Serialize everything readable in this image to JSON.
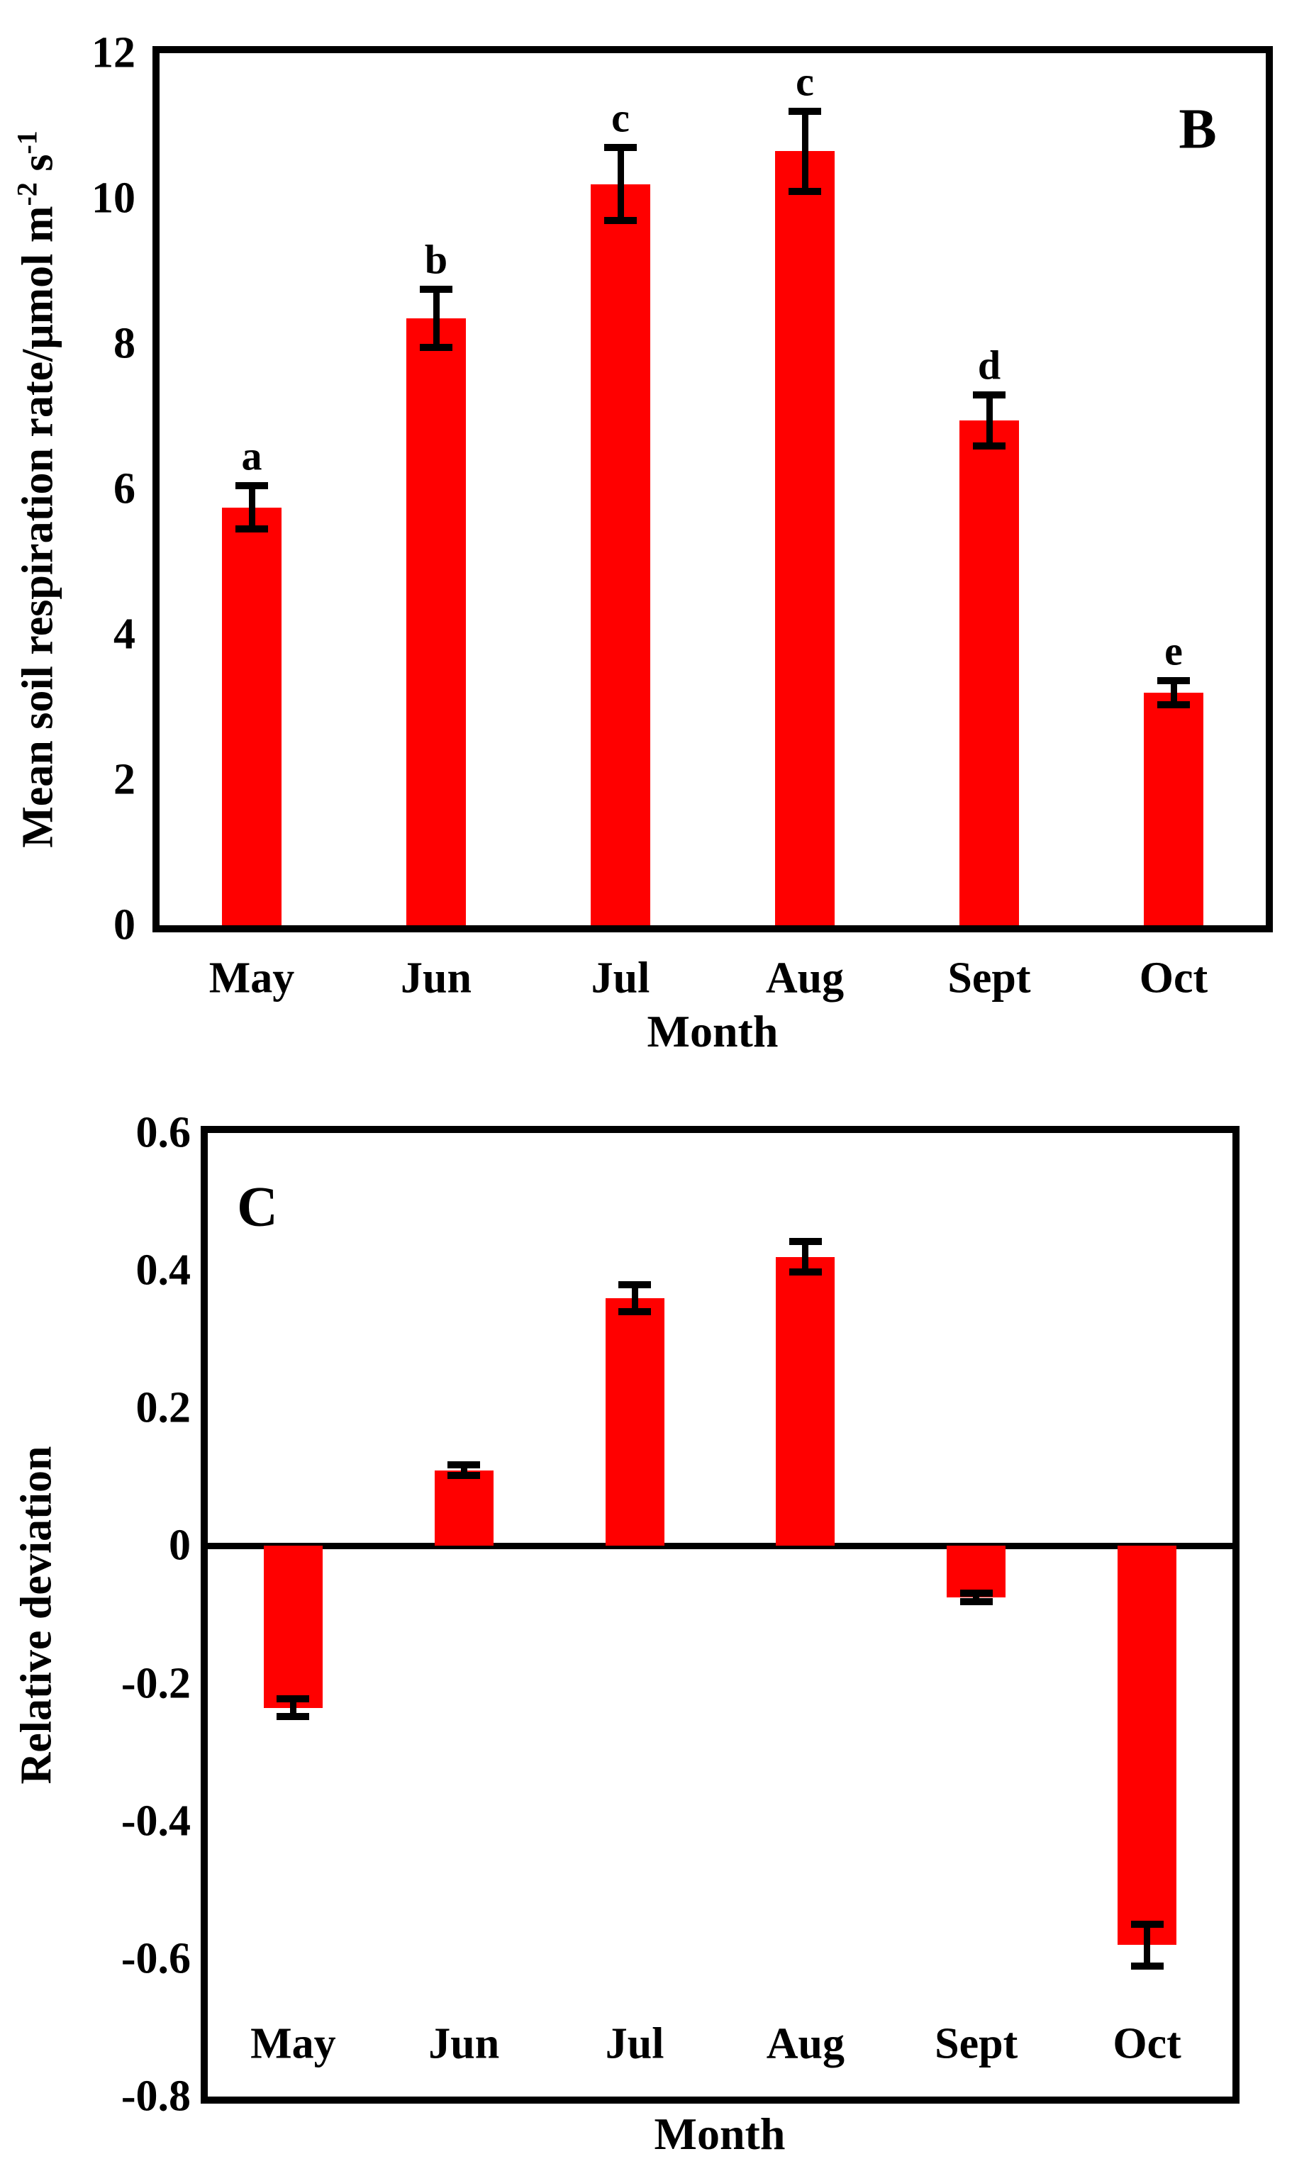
{
  "figure": {
    "background": "#ffffff",
    "bar_color": "#ff0000",
    "frame_color": "#000000"
  },
  "chart_data": [
    {
      "id": "B",
      "type": "bar",
      "panel_label": "B",
      "categories": [
        "May",
        "Jun",
        "Jul",
        "Aug",
        "Sept",
        "Oct"
      ],
      "values": [
        5.75,
        8.35,
        10.2,
        10.65,
        6.95,
        3.2
      ],
      "errors": [
        0.3,
        0.4,
        0.5,
        0.55,
        0.35,
        0.17
      ],
      "sig_letters": [
        "a",
        "b",
        "c",
        "c",
        "d",
        "e"
      ],
      "xlabel": "Month",
      "ylabel": {
        "main": "Mean soil respiration rate/μmol m",
        "sup1": "-2",
        "mid": " s",
        "sup2": "-1"
      },
      "ylim": [
        0,
        12
      ],
      "yticks": [
        "0",
        "2",
        "4",
        "6",
        "8",
        "10",
        "12"
      ],
      "bar_color": "#ff0000",
      "grid": false,
      "legend": null
    },
    {
      "id": "C",
      "type": "bar",
      "panel_label": "C",
      "categories": [
        "May",
        "Jun",
        "Jul",
        "Aug",
        "Sept",
        "Oct"
      ],
      "values": [
        -0.235,
        0.11,
        0.36,
        0.42,
        -0.075,
        -0.58
      ],
      "errors": [
        0.013,
        0.008,
        0.02,
        0.022,
        0.006,
        0.03
      ],
      "sig_letters": null,
      "xlabel": "Month",
      "ylabel": {
        "main": "Relative deviation",
        "sup1": "",
        "mid": "",
        "sup2": ""
      },
      "ylim": [
        -0.8,
        0.6
      ],
      "yticks": [
        "0.6",
        "0.4",
        "0.2",
        "0",
        "-0.2",
        "-0.4",
        "-0.6",
        "-0.8"
      ],
      "bar_color": "#ff0000",
      "grid": false,
      "legend": null
    }
  ]
}
